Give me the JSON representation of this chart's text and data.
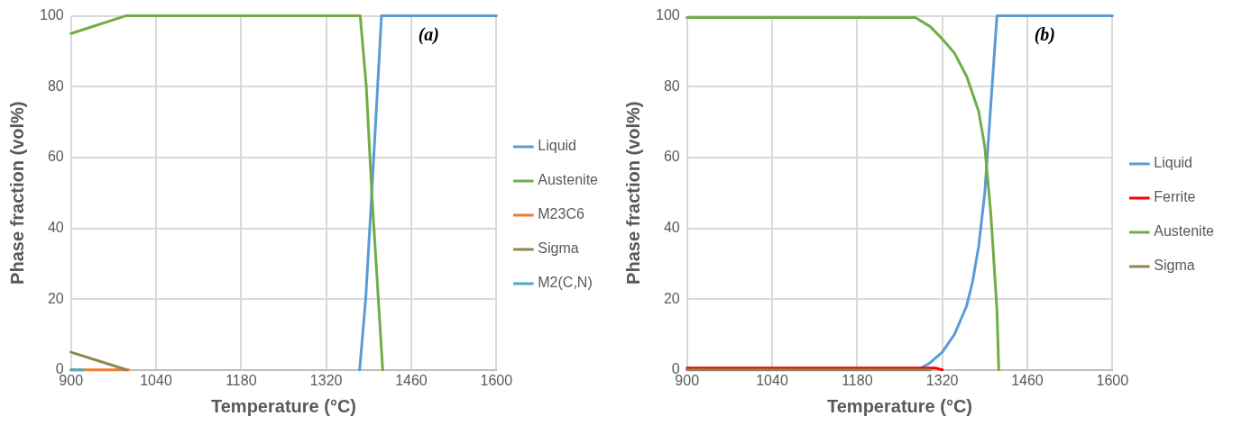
{
  "chart_data": [
    {
      "type": "line",
      "xlabel": "Temperature (°C)",
      "ylabel": "Phase fraction (vol%)",
      "annotations": [
        "(a)"
      ],
      "xlim": [
        900,
        1600
      ],
      "xticks": [
        900,
        1040,
        1180,
        1320,
        1460,
        1600
      ],
      "ylim": [
        0,
        100
      ],
      "yticks": [
        0,
        20,
        40,
        60,
        80,
        100
      ],
      "grid": true,
      "legend": "right",
      "marker": "none",
      "line_style": "solid",
      "series": [
        {
          "name": "Liquid",
          "color": "#5b9bd5",
          "x": [
            1375,
            1385,
            1395,
            1411,
            1600
          ],
          "values": [
            0,
            20,
            50,
            100,
            100
          ]
        },
        {
          "name": "Austenite",
          "color": "#70ad47",
          "x": [
            900,
            990,
            1376,
            1386,
            1395,
            1413
          ],
          "values": [
            95,
            100,
            100,
            80,
            50,
            0
          ]
        },
        {
          "name": "M23C6",
          "color": "#ed7d31",
          "x": [
            900,
            995
          ],
          "values": [
            0,
            0
          ]
        },
        {
          "name": "Sigma",
          "color": "#8f8552",
          "x": [
            900,
            992
          ],
          "values": [
            5,
            0
          ]
        },
        {
          "name": "M2(C,N)",
          "color": "#4bacc6",
          "x": [
            900,
            920
          ],
          "values": [
            0,
            0
          ]
        }
      ]
    },
    {
      "type": "line",
      "xlabel": "Temperature (°C)",
      "ylabel": "Phase fraction (vol%)",
      "annotations": [
        "(b)"
      ],
      "xlim": [
        900,
        1600
      ],
      "xticks": [
        900,
        1040,
        1180,
        1320,
        1460,
        1600
      ],
      "ylim": [
        0,
        100
      ],
      "yticks": [
        0,
        20,
        40,
        60,
        80,
        100
      ],
      "grid": true,
      "legend": "right",
      "marker": "none",
      "line_style": "solid",
      "series": [
        {
          "name": "Liquid",
          "color": "#5b9bd5",
          "x": [
            1280,
            1300,
            1320,
            1340,
            1360,
            1370,
            1380,
            1390,
            1400,
            1410,
            1600
          ],
          "values": [
            0,
            2,
            5,
            10,
            18,
            25,
            35,
            50,
            75,
            100,
            100
          ]
        },
        {
          "name": "Ferrite",
          "color": "#ff0000",
          "x": [
            900,
            1310,
            1320
          ],
          "values": [
            0.5,
            0.5,
            0
          ]
        },
        {
          "name": "Austenite",
          "color": "#70ad47",
          "x": [
            900,
            1276,
            1300,
            1320,
            1340,
            1360,
            1380,
            1390,
            1400,
            1410,
            1413
          ],
          "values": [
            99.5,
            99.5,
            97,
            93.5,
            89.5,
            83,
            73,
            63,
            44,
            17,
            0
          ]
        },
        {
          "name": "Sigma",
          "color": "#8f8552",
          "x": [
            900,
            1300
          ],
          "values": [
            0,
            0
          ]
        }
      ]
    }
  ]
}
